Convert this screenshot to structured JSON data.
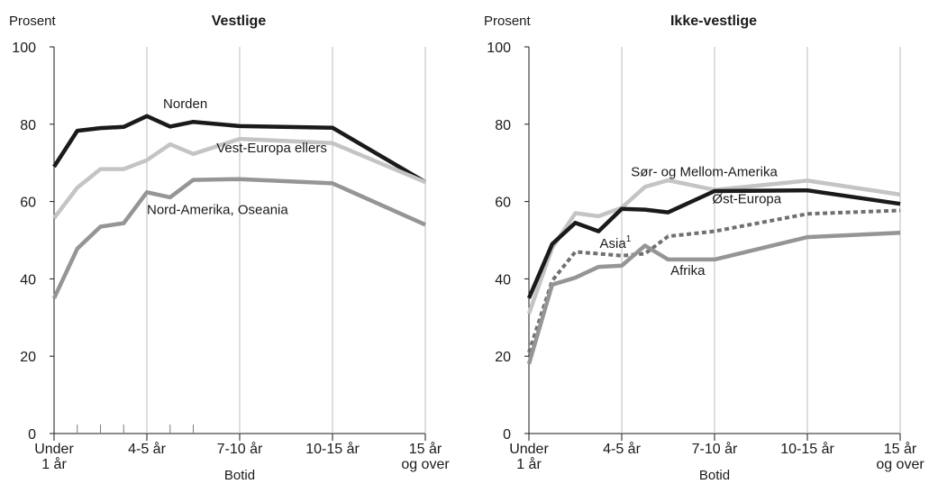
{
  "chart_data": [
    {
      "type": "line",
      "title": "Vestlige",
      "ylabel": "Prosent",
      "xlabel": "Botid",
      "ylim": [
        0,
        100
      ],
      "yticks": [
        "0",
        "20",
        "40",
        "60",
        "80",
        "100"
      ],
      "xticks": [
        {
          "pos": 0,
          "lines": [
            "Under",
            "1 år"
          ]
        },
        {
          "pos": 4,
          "lines": [
            "4-5 år"
          ]
        },
        {
          "pos": 8,
          "lines": [
            "7-10 år"
          ]
        },
        {
          "pos": 12,
          "lines": [
            "10-15 år"
          ]
        },
        {
          "pos": 16,
          "lines": [
            "15 år",
            "og over"
          ]
        }
      ],
      "minor_ticks": [
        1,
        2,
        3,
        5,
        6
      ],
      "grid": "vertical",
      "x": [
        0,
        1,
        2,
        3,
        4,
        5,
        6,
        8,
        12,
        16
      ],
      "series": [
        {
          "name": "Norden",
          "color": "#1a1a1a",
          "dash": false,
          "values": [
            69,
            78.3,
            79,
            79.3,
            82.1,
            79.4,
            80.6,
            79.5,
            79.1,
            65
          ]
        },
        {
          "name": "Vest-Europa ellers",
          "color": "#c4c4c4",
          "dash": false,
          "values": [
            55.7,
            63.6,
            68.4,
            68.4,
            70.7,
            74.8,
            72.3,
            76.2,
            75.1,
            65
          ]
        },
        {
          "name": "Nord-Amerika, Oseania",
          "color": "#959595",
          "dash": false,
          "values": [
            35,
            47.8,
            53.5,
            54.4,
            62.4,
            61.1,
            65.6,
            65.8,
            64.7,
            54
          ]
        }
      ],
      "labels": [
        {
          "text": "Norden",
          "x": 4.7,
          "y": 84.2
        },
        {
          "text": "Vest-Europa ellers",
          "x": 7,
          "y": 72.7
        },
        {
          "text": "Nord-Amerika, Oseania",
          "x": 4,
          "y": 56.8
        }
      ]
    },
    {
      "type": "line",
      "title": "Ikke-vestlige",
      "ylabel": "Prosent",
      "xlabel": "Botid",
      "ylim": [
        0,
        100
      ],
      "yticks": [
        "0",
        "20",
        "40",
        "60",
        "80",
        "100"
      ],
      "xticks": [
        {
          "pos": 0,
          "lines": [
            "Under",
            "1 år"
          ]
        },
        {
          "pos": 4,
          "lines": [
            "4-5 år"
          ]
        },
        {
          "pos": 8,
          "lines": [
            "7-10 år"
          ]
        },
        {
          "pos": 12,
          "lines": [
            "10-15 år"
          ]
        },
        {
          "pos": 16,
          "lines": [
            "15 år",
            "og over"
          ]
        }
      ],
      "minor_ticks": [],
      "grid": "vertical",
      "x": [
        0,
        1,
        2,
        3,
        4,
        5,
        6,
        8,
        12,
        16
      ],
      "series": [
        {
          "name": "Sør- og Mellom-Amerika",
          "color": "#c4c4c4",
          "dash": false,
          "values": [
            31,
            48,
            57,
            56.2,
            58.4,
            63.8,
            65.5,
            63,
            65.4,
            61.8
          ]
        },
        {
          "name": "Øst-Europa",
          "color": "#1a1a1a",
          "dash": false,
          "values": [
            35,
            49,
            54.5,
            52.3,
            58.1,
            57.9,
            57.2,
            62.7,
            62.9,
            59.4
          ]
        },
        {
          "name": "Asia",
          "sup": "1",
          "color": "#707070",
          "dash": true,
          "values": [
            21,
            39.5,
            47,
            46.5,
            46,
            46.5,
            51,
            52.3,
            56.8,
            57.7
          ]
        },
        {
          "name": "Afrika",
          "color": "#959595",
          "dash": false,
          "values": [
            18,
            38.5,
            40.3,
            43.1,
            43.4,
            48.6,
            45,
            45,
            50.8,
            51.9
          ]
        }
      ],
      "labels": [
        {
          "text": "Sør- og Mellom-Amerika",
          "x": 4.4,
          "y": 66.5
        },
        {
          "text": "Øst-Europa",
          "x": 7.9,
          "y": 59.5
        },
        {
          "text": "Asia",
          "sup": "1",
          "x": 3.05,
          "y": 48
        },
        {
          "text": "Afrika",
          "x": 6.1,
          "y": 41
        }
      ]
    }
  ]
}
